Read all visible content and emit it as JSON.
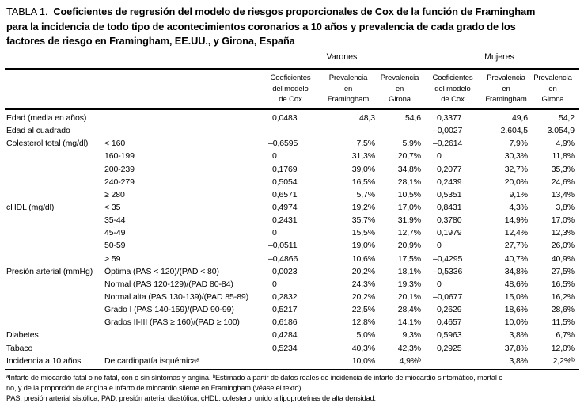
{
  "title": {
    "prefix": "TABLA 1.",
    "line1": "Coeficientes de regresión del modelo de riesgos proporcionales de Cox de la función de Framingham",
    "line2": "para la incidencia de todo tipo de acontecimientos coronarios a 10 años y prevalencia de cada grado de los",
    "line3": "factores de riesgo en Framingham, EE.UU., y Girona, España"
  },
  "table": {
    "group_headers": [
      "Varones",
      "Mujeres"
    ],
    "col_headers": [
      "Coeficientes\ndel modelo\nde Cox",
      "Prevalencia\nen\nFramingham",
      "Prevalencia\nen\nGirona",
      "Coeficientes\ndel modelo\nde Cox",
      "Prevalencia\nen\nFramingham",
      "Prevalencia\nen\nGirona"
    ],
    "rows": [
      [
        "Edad (media en años)",
        "",
        "0,0483",
        "48,3",
        "54,6",
        "0,3377",
        "49,6",
        "54,2"
      ],
      [
        "Edad al cuadrado",
        "",
        "",
        "",
        "",
        "–0,0027",
        "2.604,5",
        "3.054,9"
      ],
      [
        "Colesterol total (mg/dl)",
        "< 160",
        "–0,6595",
        "7,5%",
        "5,9%",
        "–0,2614",
        "7,9%",
        "4,9%"
      ],
      [
        "",
        "160-199",
        "0",
        "31,3%",
        "20,7%",
        "0",
        "30,3%",
        "11,8%"
      ],
      [
        "",
        "200-239",
        "0,1769",
        "39,0%",
        "34,8%",
        "0,2077",
        "32,7%",
        "35,3%"
      ],
      [
        "",
        "240-279",
        "0,5054",
        "16,5%",
        "28,1%",
        "0,2439",
        "20,0%",
        "24,6%"
      ],
      [
        "",
        "≥ 280",
        "0,6571",
        "5,7%",
        "10,5%",
        "0,5351",
        "9,1%",
        "13,4%"
      ],
      [
        "cHDL (mg/dl)",
        "< 35",
        "0,4974",
        "19,2%",
        "17,0%",
        "0,8431",
        "4,3%",
        "3,8%"
      ],
      [
        "",
        "35-44",
        "0,2431",
        "35,7%",
        "31,9%",
        "0,3780",
        "14,9%",
        "17,0%"
      ],
      [
        "",
        "45-49",
        "0",
        "15,5%",
        "12,7%",
        "0,1979",
        "12,4%",
        "12,3%"
      ],
      [
        "",
        "50-59",
        "–0,0511",
        "19,0%",
        "20,9%",
        "0",
        "27,7%",
        "26,0%"
      ],
      [
        "",
        "> 59",
        "–0,4866",
        "10,6%",
        "17,5%",
        "–0,4295",
        "40,7%",
        "40,9%"
      ],
      [
        "Presión arterial (mmHg)",
        "Óptima (PAS < 120)/(PAD < 80)",
        "0,0023",
        "20,2%",
        "18,1%",
        "–0,5336",
        "34,8%",
        "27,5%"
      ],
      [
        "",
        "Normal (PAS 120-129)/(PAD 80-84)",
        "0",
        "24,3%",
        "19,3%",
        "0",
        "48,6%",
        "16,5%"
      ],
      [
        "",
        "Normal alta (PAS 130-139)/(PAD 85-89)",
        "0,2832",
        "20,2%",
        "20,1%",
        "–0,0677",
        "15,0%",
        "16,2%"
      ],
      [
        "",
        "Grado I (PAS 140-159)/(PAD 90-99)",
        "0,5217",
        "22,5%",
        "28,4%",
        "0,2629",
        "18,6%",
        "28,6%"
      ],
      [
        "",
        "Grados II-III (PAS ≥ 160)/(PAD ≥ 100)",
        "0,6186",
        "12,8%",
        "14,1%",
        "0,4657",
        "10,0%",
        "11,5%"
      ],
      [
        "Diabetes",
        "",
        "0,4284",
        "5,0%",
        "9,3%",
        "0,5963",
        "3,8%",
        "6,7%"
      ],
      [
        "Tabaco",
        "",
        "0,5234",
        "40,3%",
        "42,3%",
        "0,2925",
        "37,8%",
        "12,0%"
      ],
      [
        "Incidencia a 10 años",
        "De cardiopatía isquémicaᵃ",
        "",
        "10,0%",
        "4,9%ᵇ",
        "",
        "3,8%",
        "2,2%ᵇ"
      ]
    ]
  },
  "footnotes": [
    "ᵃInfarto de miocardio fatal o no fatal, con o sin síntomas y angina. ᵇEstimado a partir de datos reales de incidencia de infarto de miocardio sintomático, mortal o",
    "no, y de la proporción de angina e infarto de miocardio silente en Framingham (véase el texto).",
    "PAS: presión arterial sistólica; PAD: presión arterial diastólica; cHDL: colesterol unido a lipoproteínas de alta densidad."
  ]
}
